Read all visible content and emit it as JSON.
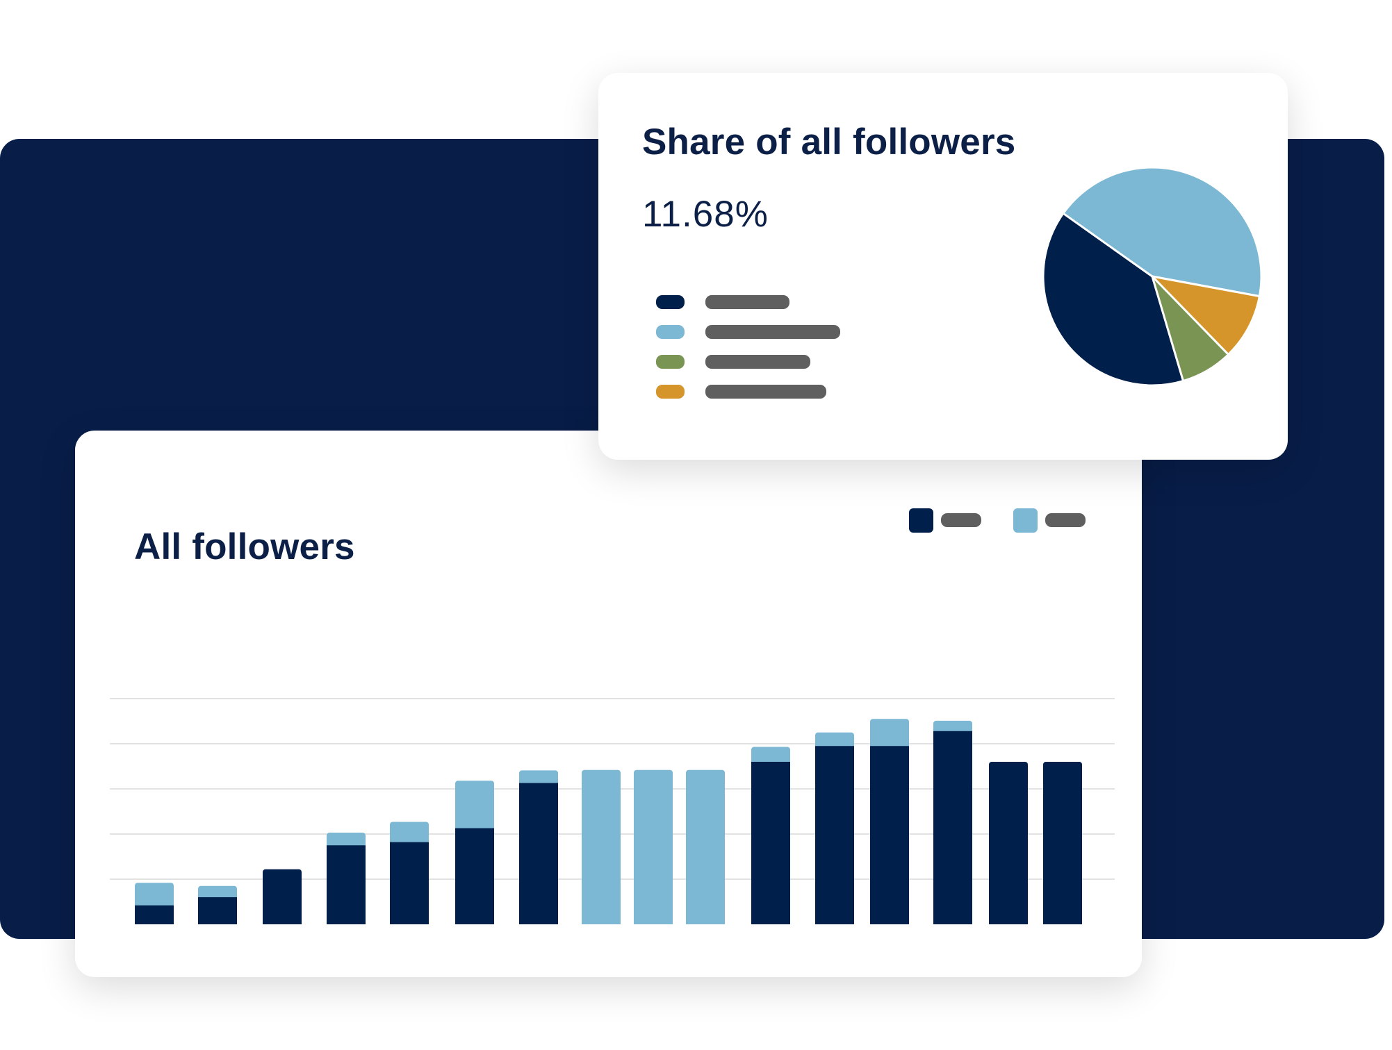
{
  "colors": {
    "navy": "#011f4b",
    "light_blue": "#7cb8d3",
    "green": "#7a9553",
    "orange": "#d6952b",
    "placeholder_gray": "#5f5f5f",
    "backdrop": "#081d48",
    "gridline": "#e2e2e2"
  },
  "followers_card": {
    "title": "All followers",
    "legend_swatch_colors": [
      "#011f4b",
      "#7cb8d3"
    ]
  },
  "share_card": {
    "title": "Share of all followers",
    "value": "11.68%",
    "legend_swatch_colors": [
      "#011f4b",
      "#7cb8d3",
      "#7a9553",
      "#d6952b"
    ]
  },
  "chart_data": [
    {
      "type": "bar",
      "stacked": true,
      "title": "All followers",
      "categories": [
        "",
        "",
        "",
        "",
        "",
        "",
        "",
        "",
        "",
        "",
        "",
        "",
        "",
        "",
        "",
        ""
      ],
      "series": [
        {
          "color": "#011f4b",
          "values": [
            0.42,
            0.6,
            1.22,
            1.75,
            1.82,
            2.13,
            3.13,
            0,
            0,
            0,
            3.6,
            3.95,
            3.95,
            4.28,
            3.6,
            3.6
          ]
        },
        {
          "color": "#7cb8d3",
          "values": [
            0.5,
            0.25,
            0,
            0.28,
            0.45,
            1.05,
            0.28,
            3.42,
            3.42,
            3.42,
            0.33,
            0.3,
            0.6,
            0.23,
            0,
            0
          ]
        }
      ],
      "ylim": [
        0,
        5
      ],
      "grid": true,
      "legend": "top-right"
    },
    {
      "type": "pie",
      "title": "Share of all followers",
      "slices": [
        {
          "color": "#011f4b",
          "value": 39.4
        },
        {
          "color": "#7cb8d3",
          "value": 43.1
        },
        {
          "color": "#d6952b",
          "value": 9.8
        },
        {
          "color": "#7a9553",
          "value": 7.7
        }
      ]
    }
  ]
}
